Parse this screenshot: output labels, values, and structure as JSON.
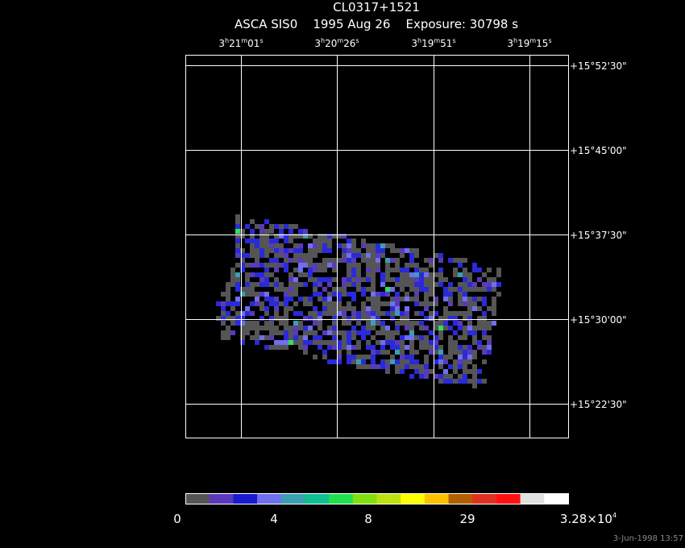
{
  "header": {
    "title": "CL0317+1521",
    "subtitle": "ASCA SIS0    1995 Aug 26    Exposure: 30798 s"
  },
  "ra_labels": [
    {
      "parts": [
        "3",
        "h",
        "21",
        "m",
        "01",
        "s"
      ]
    },
    {
      "parts": [
        "3",
        "h",
        "20",
        "m",
        "26",
        "s"
      ]
    },
    {
      "parts": [
        "3",
        "h",
        "19",
        "m",
        "51",
        "s"
      ]
    },
    {
      "parts": [
        "3",
        "h",
        "19",
        "m",
        "15",
        "s"
      ]
    }
  ],
  "dec_labels": [
    "+15°52'30\"",
    "+15°45'00\"",
    "+15°37'30\"",
    "+15°30'00\"",
    "+15°22'30\""
  ],
  "colorbar": {
    "labels": [
      "0",
      "4",
      "8",
      "29"
    ],
    "max_label": {
      "mantissa": "3.28×10",
      "exponent": "4"
    }
  },
  "timestamp": "3-Jun-1998 13:57"
}
